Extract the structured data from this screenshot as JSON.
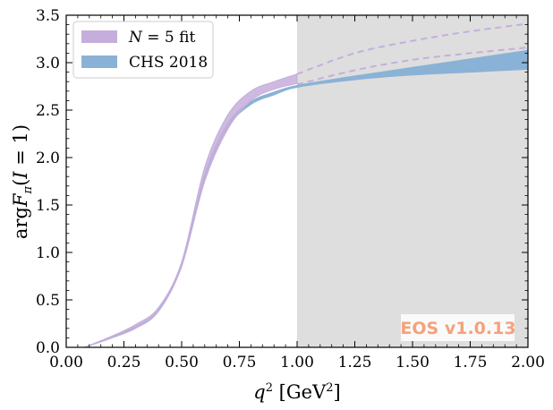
{
  "chart_data": {
    "type": "area",
    "xlabel": "q² [GeV²]",
    "ylabel": "arg F_π(I = 1)",
    "xlim": [
      0.0,
      2.0
    ],
    "ylim": [
      0.0,
      3.5
    ],
    "xticks": [
      "0.00",
      "0.25",
      "0.50",
      "0.75",
      "1.00",
      "1.25",
      "1.50",
      "1.75",
      "2.00"
    ],
    "yticks": [
      "0.0",
      "0.5",
      "1.0",
      "1.5",
      "2.0",
      "2.5",
      "3.0",
      "3.5"
    ],
    "shaded_region": {
      "x_from": 1.0,
      "x_to": 2.0,
      "color": "#dedede"
    },
    "watermark": {
      "text": "EOS v1.0.13",
      "color": "#f5a27c"
    },
    "legend": {
      "position": "upper-left",
      "entries": [
        {
          "label": "N = 5 fit",
          "color": "#c5aedb"
        },
        {
          "label": "CHS 2018",
          "color": "#8ab2d6"
        }
      ]
    },
    "series": [
      {
        "name": "N = 5 fit",
        "color": "#c5aedb",
        "x": [
          0.08,
          0.2,
          0.3,
          0.4,
          0.5,
          0.6,
          0.7,
          0.8,
          0.9,
          1.0
        ],
        "lower": [
          0.0,
          0.1,
          0.2,
          0.38,
          0.85,
          1.75,
          2.3,
          2.6,
          2.72,
          2.78
        ],
        "upper": [
          0.0,
          0.12,
          0.24,
          0.42,
          0.9,
          1.9,
          2.45,
          2.7,
          2.8,
          2.88
        ],
        "extrapolation": {
          "x": [
            1.0,
            1.25,
            1.5,
            1.75,
            2.0
          ],
          "lower": [
            2.77,
            2.92,
            3.03,
            3.1,
            3.16
          ],
          "upper": [
            2.88,
            3.1,
            3.23,
            3.33,
            3.41
          ]
        }
      },
      {
        "name": "CHS 2018",
        "color": "#8ab2d6",
        "x": [
          0.08,
          0.2,
          0.3,
          0.4,
          0.5,
          0.6,
          0.7,
          0.8,
          0.9,
          1.0,
          1.25,
          1.5,
          1.75,
          2.0
        ],
        "lower": [
          0.0,
          0.11,
          0.2,
          0.38,
          0.86,
          1.78,
          2.32,
          2.56,
          2.66,
          2.74,
          2.82,
          2.87,
          2.9,
          2.93
        ],
        "upper": [
          0.0,
          0.12,
          0.22,
          0.4,
          0.88,
          1.82,
          2.36,
          2.59,
          2.69,
          2.76,
          2.86,
          2.95,
          3.04,
          3.13
        ]
      }
    ]
  }
}
